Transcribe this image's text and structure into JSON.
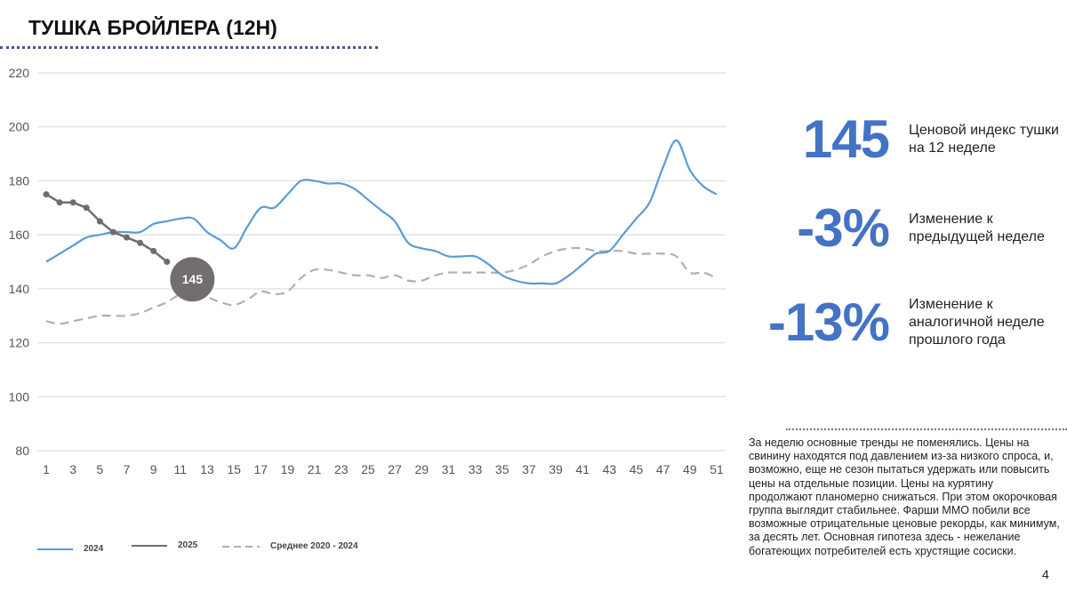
{
  "title": "ТУШКА БРОЙЛЕРА (12Н)",
  "kpis": [
    {
      "value": "145",
      "label": "Ценовой индекс тушки на 12 неделе"
    },
    {
      "value": "-3%",
      "label": "Изменение к предыдущей неделе"
    },
    {
      "value": "-13%",
      "label": "Изменение к аналогичной неделе прошлого года"
    }
  ],
  "comment": "За неделю основные тренды не поменялись. Цены на свинину находятся под давлением из-за низкого спроса, и, возможно, еще не сезон пытаться удержать или повысить цены на отдельные позиции. Цены на курятину продолжают планомерно снижаться. При этом окорочковая группа выглядит стабильнее. Фарши ММО побили все возможные отрицательные ценовые рекорды, как минимум, за десять лет. Основная гипотеза здесь - нежелание богатеющих потребителей есть хрустящие сосиски.",
  "page_number": "4",
  "chart_data": {
    "type": "line",
    "ylim": [
      80,
      220
    ],
    "yticks": [
      "80",
      "100",
      "120",
      "140",
      "160",
      "180",
      "200",
      "220"
    ],
    "xticks": [
      "1",
      "3",
      "5",
      "7",
      "9",
      "11",
      "13",
      "15",
      "17",
      "19",
      "21",
      "23",
      "25",
      "27",
      "29",
      "31",
      "33",
      "35",
      "37",
      "39",
      "41",
      "43",
      "45",
      "47",
      "49",
      "51"
    ],
    "grid": true,
    "legend_position": "bottom-left",
    "annotation": "145",
    "series": [
      {
        "name": "2024",
        "color": "#5b9bd5",
        "style": "solid",
        "values": [
          150,
          153,
          156,
          159,
          160,
          161,
          161,
          161,
          164,
          165,
          166,
          166,
          161,
          158,
          155,
          163,
          170,
          170,
          175,
          180,
          180,
          179,
          179,
          177,
          173,
          169,
          165,
          157,
          155,
          154,
          152,
          152,
          152,
          149,
          145,
          143,
          142,
          142,
          142,
          145,
          149,
          153,
          154,
          160,
          166,
          172,
          185,
          195,
          184,
          178,
          175
        ]
      },
      {
        "name": "2025",
        "color": "#706c6c",
        "style": "solid-markers",
        "values": [
          175,
          172,
          172,
          170,
          165,
          161,
          159,
          157,
          154,
          150
        ]
      },
      {
        "name": "Среднее 2020 - 2024",
        "color": "#b0b0b0",
        "style": "dashed",
        "values": [
          128,
          127,
          128,
          129,
          130,
          130,
          130,
          131,
          133,
          135,
          138,
          139,
          137,
          135,
          134,
          136,
          139,
          138,
          139,
          144,
          147,
          147,
          146,
          145,
          145,
          144,
          145,
          143,
          143,
          145,
          146,
          146,
          146,
          146,
          146,
          147,
          149,
          152,
          154,
          155,
          155,
          154,
          154,
          154,
          153,
          153,
          153,
          152,
          146,
          146,
          144
        ]
      }
    ]
  }
}
